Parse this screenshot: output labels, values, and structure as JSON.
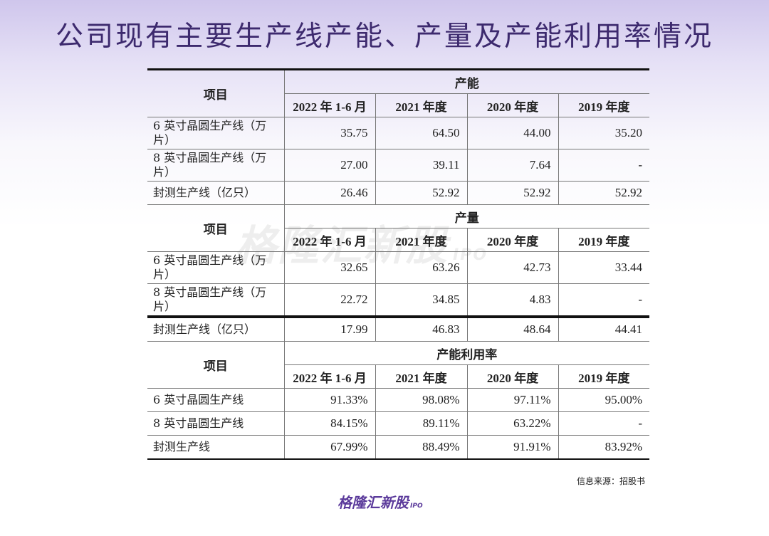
{
  "title": "公司现有主要生产线产能、产量及产能利用率情况",
  "watermark": {
    "text": "格隆汇新股",
    "suffix": "IPO"
  },
  "table": {
    "item_header": "项目",
    "years": [
      "2022 年 1-6 月",
      "2021 年度",
      "2020 年度",
      "2019 年度"
    ],
    "sections": [
      {
        "name": "产能",
        "rows": [
          {
            "label": "6 英寸晶圆生产线（万片）",
            "values": [
              "35.75",
              "64.50",
              "44.00",
              "35.20"
            ]
          },
          {
            "label": "8 英寸晶圆生产线（万片）",
            "values": [
              "27.00",
              "39.11",
              "7.64",
              "-"
            ]
          },
          {
            "label": "封测生产线（亿只）",
            "values": [
              "26.46",
              "52.92",
              "52.92",
              "52.92"
            ]
          }
        ]
      },
      {
        "name": "产量",
        "rows": [
          {
            "label": "6 英寸晶圆生产线（万片）",
            "values": [
              "32.65",
              "63.26",
              "42.73",
              "33.44"
            ]
          },
          {
            "label": "8 英寸晶圆生产线（万片）",
            "values": [
              "22.72",
              "34.85",
              "4.83",
              "-"
            ]
          },
          {
            "label": "封测生产线（亿只）",
            "values": [
              "17.99",
              "46.83",
              "48.64",
              "44.41"
            ]
          }
        ]
      },
      {
        "name": "产能利用率",
        "rows": [
          {
            "label": "6 英寸晶圆生产线",
            "values": [
              "91.33%",
              "98.08%",
              "97.11%",
              "95.00%"
            ]
          },
          {
            "label": "8 英寸晶圆生产线",
            "values": [
              "84.15%",
              "89.11%",
              "63.22%",
              "-"
            ]
          },
          {
            "label": "封测生产线",
            "values": [
              "67.99%",
              "88.49%",
              "91.91%",
              "83.92%"
            ]
          }
        ]
      }
    ]
  },
  "source": "信息来源：招股书",
  "logo": {
    "text": "格隆汇新股",
    "suffix": "IPO"
  }
}
